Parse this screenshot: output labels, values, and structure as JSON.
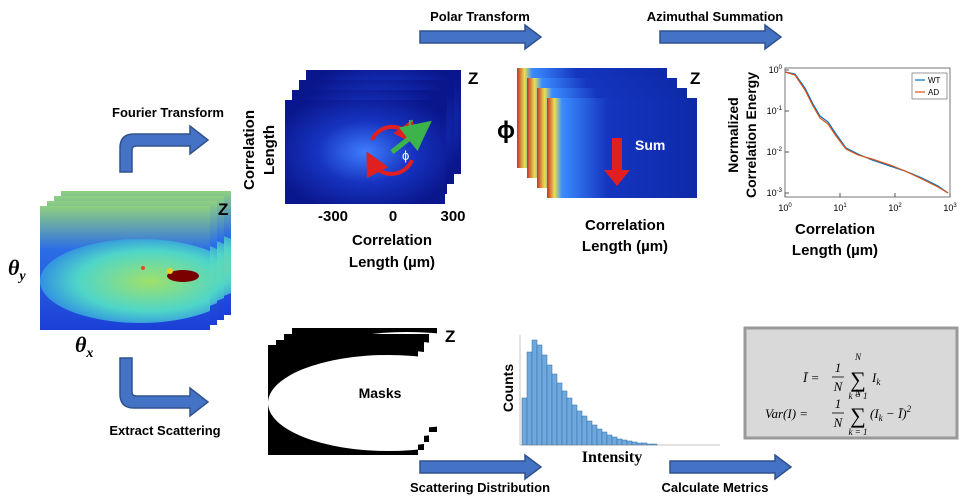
{
  "flow_arrows": {
    "polar_transform": "Polar Transform",
    "azimuthal_summation": "Azimuthal Summation",
    "fourier_transform": "Fourier Transform",
    "extract_scattering": "Extract Scattering",
    "scattering_distribution": "Scattering Distribution",
    "calculate_metrics": "Calculate Metrics"
  },
  "scattering_stack": {
    "z_label": "Z",
    "theta_y": {
      "symbol": "θ",
      "subscript": "y"
    },
    "theta_x": {
      "symbol": "θ",
      "subscript": "x"
    }
  },
  "fourier_stack": {
    "z_label": "Z",
    "y_axis_label": [
      "Correlation",
      "Length"
    ],
    "x_ticks": [
      "-300",
      "0",
      "300"
    ],
    "x_axis_label": [
      "Correlation",
      "Length (µm)"
    ],
    "vector_label": "r",
    "angle_label": "ϕ"
  },
  "polar_stack": {
    "z_label": "Z",
    "y_axis_label": "ϕ",
    "sum_label": "Sum",
    "x_axis_label": [
      "Correlation",
      "Length (µm)"
    ]
  },
  "energy_plot": {
    "y_axis_label": [
      "Normalized",
      "Correlation Energy"
    ],
    "x_axis_label": [
      "Correlation",
      "Length (µm)"
    ],
    "x_ticks": [
      {
        "base": "10",
        "exponent": "0"
      },
      {
        "base": "10",
        "exponent": "1"
      },
      {
        "base": "10",
        "exponent": "2"
      },
      {
        "base": "10",
        "exponent": "3"
      }
    ],
    "y_ticks": [
      {
        "base": "10",
        "exponent": "0"
      },
      {
        "base": "10",
        "exponent": "-1"
      },
      {
        "base": "10",
        "exponent": "-2"
      },
      {
        "base": "10",
        "exponent": "-3"
      }
    ],
    "legend": [
      "WT",
      "AD"
    ]
  },
  "mask_stack": {
    "z_label": "Z",
    "label": "Masks"
  },
  "histogram": {
    "y_axis_label": "Counts",
    "x_axis_label": "Intensity"
  },
  "metrics": {
    "mean": {
      "lhs": "Ī =",
      "numerator": "1",
      "denominator": "N",
      "sum_symbol": "∑",
      "sum_upper": "N",
      "sum_lower": "k = 1",
      "term": "I",
      "term_subscript": "k"
    },
    "variance": {
      "lhs": "Var(I) =",
      "numerator": "1",
      "denominator": "N",
      "sum_symbol": "∑",
      "sum_upper": "N",
      "sum_lower": "k = 1",
      "term": "(I",
      "term_subscript": "k",
      "term_rest": " − Ī)",
      "power": "2"
    }
  }
}
